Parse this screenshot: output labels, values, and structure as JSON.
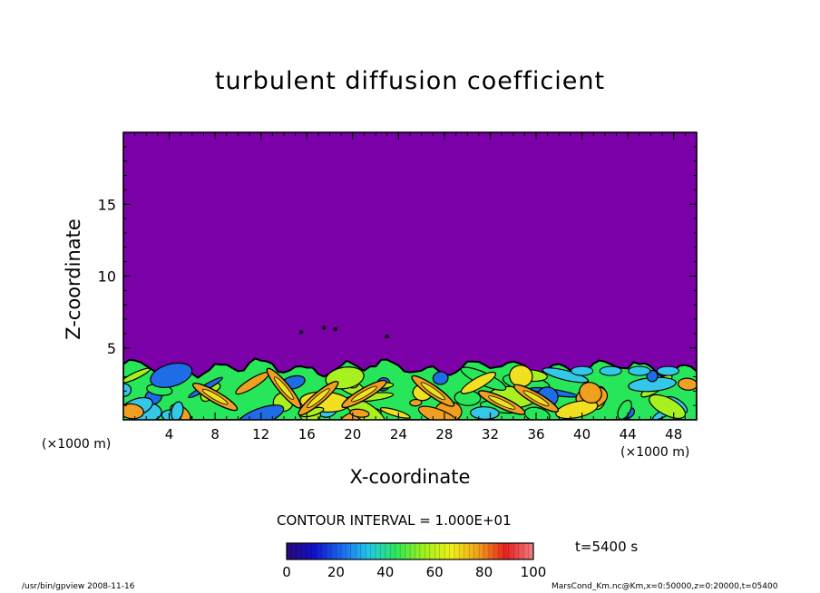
{
  "chart_data": {
    "type": "heatmap",
    "title": "turbulent diffusion coefficient",
    "xlabel": "X-coordinate",
    "ylabel": "Z-coordinate",
    "x_unit": "(×1000 m)",
    "xlim": [
      0,
      50
    ],
    "ylim": [
      0,
      20
    ],
    "x_ticks": [
      "4",
      "8",
      "12",
      "16",
      "20",
      "24",
      "28",
      "32",
      "36",
      "40",
      "44",
      "48"
    ],
    "y_ticks": [
      "5",
      "10",
      "15"
    ],
    "background_value": 0,
    "mixed_layer_top": 4,
    "colorbar": {
      "min": 0,
      "max": 100,
      "ticks": [
        "0",
        "20",
        "40",
        "60",
        "80",
        "100"
      ],
      "colors": [
        "#2a0878",
        "#1010c8",
        "#1a6af0",
        "#23c8e8",
        "#2ee85a",
        "#9ef01a",
        "#f0f01a",
        "#f0a01a",
        "#e82020",
        "#f08080"
      ]
    },
    "contour_interval": "CONTOUR INTERVAL = 1.000E+01",
    "time_label": "t=5400 s"
  },
  "colors": {
    "background_field": "#7b00a8",
    "cyan": "#34c8e8",
    "blue": "#1e6ce6",
    "green": "#28e65a",
    "lime": "#a8f020",
    "yellow": "#f0e020",
    "orange": "#f0a020",
    "red": "#e83030"
  },
  "footer": {
    "left": "/usr/bin/gpview   2008-11-16",
    "right": "MarsCond_Km.nc@Km,x=0:50000,z=0:20000,t=05400"
  }
}
